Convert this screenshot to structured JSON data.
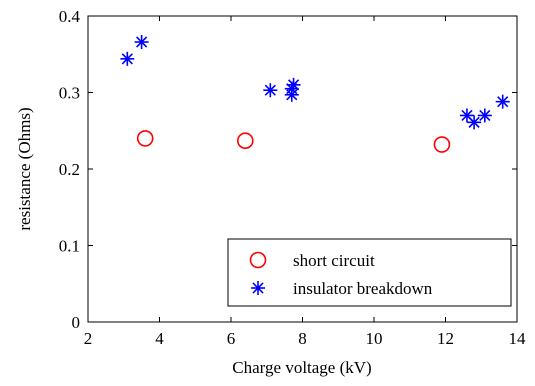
{
  "chart_data": {
    "type": "scatter",
    "xlabel": "Charge voltage (kV)",
    "ylabel": "resistance (Ohms)",
    "xlim": [
      2,
      14
    ],
    "ylim": [
      0,
      0.4
    ],
    "xticks": [
      2,
      4,
      6,
      8,
      10,
      12,
      14
    ],
    "yticks": [
      0,
      0.1,
      0.2,
      0.3,
      0.4
    ],
    "xtick_labels": [
      "2",
      "4",
      "6",
      "8",
      "10",
      "12",
      "14"
    ],
    "ytick_labels": [
      "0",
      "0.1",
      "0.2",
      "0.3",
      "0.4"
    ],
    "grid": false,
    "legend_position": "bottom-right",
    "series": [
      {
        "name": "short circuit",
        "marker": "circle",
        "color": "#ff0000",
        "points": [
          {
            "x": 3.6,
            "y": 0.24
          },
          {
            "x": 6.4,
            "y": 0.237
          },
          {
            "x": 11.9,
            "y": 0.232
          }
        ]
      },
      {
        "name": "insulator breakdown",
        "marker": "asterisk",
        "color": "#0000ff",
        "points": [
          {
            "x": 3.1,
            "y": 0.344
          },
          {
            "x": 3.5,
            "y": 0.366
          },
          {
            "x": 7.1,
            "y": 0.303
          },
          {
            "x": 7.7,
            "y": 0.297
          },
          {
            "x": 7.7,
            "y": 0.305
          },
          {
            "x": 7.75,
            "y": 0.31
          },
          {
            "x": 12.6,
            "y": 0.27
          },
          {
            "x": 12.8,
            "y": 0.261
          },
          {
            "x": 13.1,
            "y": 0.27
          },
          {
            "x": 13.6,
            "y": 0.288
          }
        ]
      }
    ]
  }
}
